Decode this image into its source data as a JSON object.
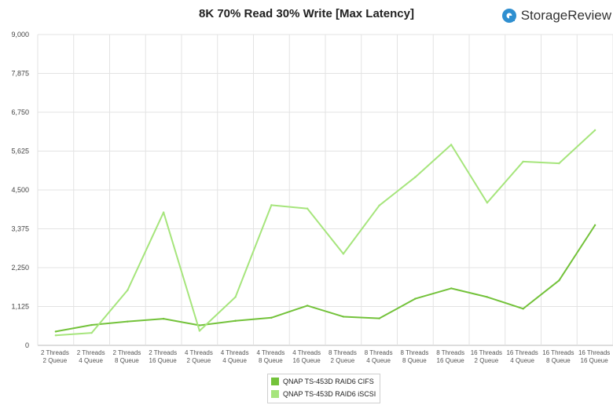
{
  "chart_data": {
    "type": "line",
    "title": "8K 70% Read 30% Write [Max Latency]",
    "xlabel": "",
    "ylabel": "",
    "ylim": [
      0,
      9000
    ],
    "yticks": [
      "0",
      "1,125",
      "2,250",
      "3,375",
      "4,500",
      "5,625",
      "6,750",
      "7,875",
      "9,000"
    ],
    "ytick_values": [
      0,
      1125,
      2250,
      3375,
      4500,
      5625,
      6750,
      7875,
      9000
    ],
    "categories": [
      [
        "2 Threads",
        "2 Queue"
      ],
      [
        "2 Threads",
        "4 Queue"
      ],
      [
        "2 Threads",
        "8 Queue"
      ],
      [
        "2 Threads",
        "16 Queue"
      ],
      [
        "4 Threads",
        "2 Queue"
      ],
      [
        "4 Threads",
        "4 Queue"
      ],
      [
        "4 Threads",
        "8 Queue"
      ],
      [
        "4 Threads",
        "16 Queue"
      ],
      [
        "8 Threads",
        "2 Queue"
      ],
      [
        "8 Threads",
        "4 Queue"
      ],
      [
        "8 Threads",
        "8 Queue"
      ],
      [
        "8 Threads",
        "16 Queue"
      ],
      [
        "16 Threads",
        "2 Queue"
      ],
      [
        "16 Threads",
        "4 Queue"
      ],
      [
        "16 Threads",
        "8 Queue"
      ],
      [
        "16 Threads",
        "16 Queue"
      ]
    ],
    "series": [
      {
        "name": "QNAP TS-453D RAID6 CIFS",
        "color": "#73c23a",
        "values": [
          400,
          590,
          690,
          770,
          580,
          710,
          800,
          1150,
          830,
          780,
          1350,
          1650,
          1400,
          1060,
          1880,
          3480
        ]
      },
      {
        "name": "QNAP TS-453D RAID6 iSCSI",
        "color": "#a6e57c",
        "values": [
          290,
          360,
          1600,
          3850,
          420,
          1400,
          4060,
          3960,
          2650,
          4050,
          4870,
          5810,
          4130,
          5320,
          5270,
          6230
        ]
      }
    ],
    "grid": true,
    "legend_position": "bottom-center"
  },
  "brand": {
    "name": "StorageReview",
    "color": "#2f8fd0"
  }
}
